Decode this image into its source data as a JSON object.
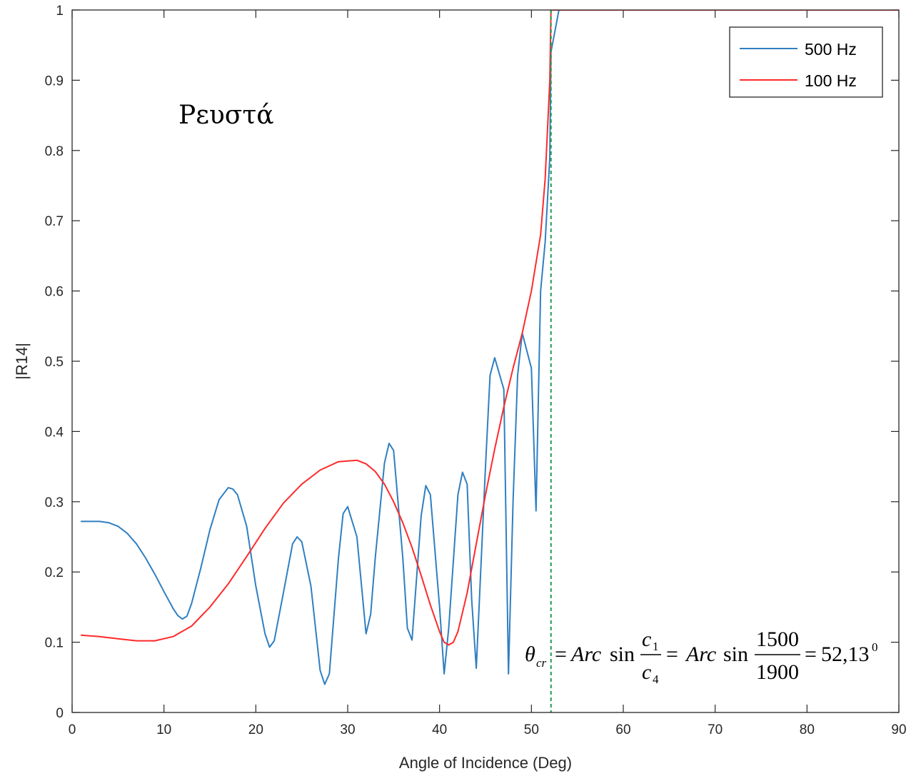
{
  "chart_data": {
    "type": "line",
    "title": "",
    "xlabel": "Angle of Incidence (Deg)",
    "ylabel": "|R14|",
    "xlim": [
      0,
      90
    ],
    "ylim": [
      0,
      1
    ],
    "xticks": [
      0,
      10,
      20,
      30,
      40,
      50,
      60,
      70,
      80,
      90
    ],
    "yticks": [
      0,
      0.1,
      0.2,
      0.3,
      0.4,
      0.5,
      0.6,
      0.7,
      0.8,
      0.9,
      1
    ],
    "xtick_labels": [
      "0",
      "10",
      "20",
      "30",
      "40",
      "50",
      "60",
      "70",
      "80",
      "90"
    ],
    "ytick_labels": [
      "0",
      "0.1",
      "0.2",
      "0.3",
      "0.4",
      "0.5",
      "0.6",
      "0.7",
      "0.8",
      "0.9",
      "1"
    ],
    "grid": false,
    "legend_position": "top-right",
    "series": [
      {
        "name": "500 Hz",
        "color": "#2f7fc1",
        "x": [
          1,
          3,
          4,
          5,
          6,
          7,
          8,
          9,
          10,
          11,
          11.5,
          12,
          12.5,
          13,
          14,
          15,
          16,
          17,
          17.5,
          18,
          19,
          20,
          21,
          21.5,
          22,
          23,
          24,
          24.5,
          25,
          26,
          27,
          27.5,
          28,
          29,
          29.5,
          30,
          31,
          32,
          32.5,
          33,
          34,
          34.5,
          35,
          36,
          36.5,
          37,
          38,
          38.5,
          39,
          40,
          40.5,
          41,
          42,
          42.5,
          43,
          43.5,
          44,
          45,
          45.5,
          46,
          47,
          47.5,
          48,
          48.5,
          49,
          50,
          50.5,
          51,
          51.5,
          52,
          52.13,
          53,
          60,
          70,
          80,
          90
        ],
        "y": [
          0.272,
          0.272,
          0.27,
          0.265,
          0.255,
          0.24,
          0.22,
          0.197,
          0.172,
          0.148,
          0.138,
          0.133,
          0.137,
          0.155,
          0.205,
          0.26,
          0.303,
          0.32,
          0.318,
          0.31,
          0.265,
          0.18,
          0.112,
          0.093,
          0.102,
          0.17,
          0.24,
          0.25,
          0.243,
          0.18,
          0.06,
          0.04,
          0.055,
          0.22,
          0.283,
          0.293,
          0.25,
          0.112,
          0.14,
          0.22,
          0.355,
          0.383,
          0.373,
          0.22,
          0.12,
          0.103,
          0.28,
          0.323,
          0.31,
          0.15,
          0.055,
          0.12,
          0.31,
          0.342,
          0.325,
          0.16,
          0.063,
          0.35,
          0.48,
          0.505,
          0.46,
          0.055,
          0.3,
          0.48,
          0.54,
          0.49,
          0.287,
          0.6,
          0.67,
          0.79,
          0.94,
          1.0,
          1.0,
          1.0,
          1.0,
          1.0
        ]
      },
      {
        "name": "100 Hz",
        "color": "#ff2a2a",
        "x": [
          1,
          3,
          5,
          7,
          9,
          11,
          13,
          15,
          17,
          19,
          21,
          23,
          25,
          27,
          29,
          31,
          32,
          33,
          34,
          35,
          36,
          37,
          38,
          39,
          40,
          40.5,
          41,
          41.5,
          42,
          43,
          44,
          45,
          46,
          47,
          48,
          49,
          50,
          51,
          51.5,
          52,
          52.13,
          53,
          60,
          70,
          80,
          90
        ],
        "y": [
          0.11,
          0.108,
          0.105,
          0.102,
          0.102,
          0.108,
          0.123,
          0.15,
          0.183,
          0.222,
          0.262,
          0.298,
          0.325,
          0.345,
          0.357,
          0.359,
          0.354,
          0.343,
          0.325,
          0.3,
          0.27,
          0.235,
          0.195,
          0.153,
          0.115,
          0.1,
          0.096,
          0.1,
          0.115,
          0.17,
          0.24,
          0.31,
          0.375,
          0.435,
          0.49,
          0.54,
          0.6,
          0.68,
          0.76,
          0.9,
          1.0,
          1.0,
          1.0,
          1.0,
          1.0,
          1.0
        ]
      }
    ],
    "critical_angle": 52.13,
    "annotations": {
      "region_label": "Ρευστά",
      "formula": {
        "theta": "θ",
        "theta_sub": "cr",
        "eq1": "=",
        "arc1": "Arc",
        "sin1": "sin",
        "num1": "c",
        "num1_sub": "1",
        "den1": "c",
        "den1_sub": "4",
        "eq2": "=",
        "arc2": "Arc",
        "sin2": "sin",
        "num2": "1500",
        "den2": "1900",
        "eq3": "=",
        "result": "52,13",
        "result_sup": "0"
      }
    }
  }
}
